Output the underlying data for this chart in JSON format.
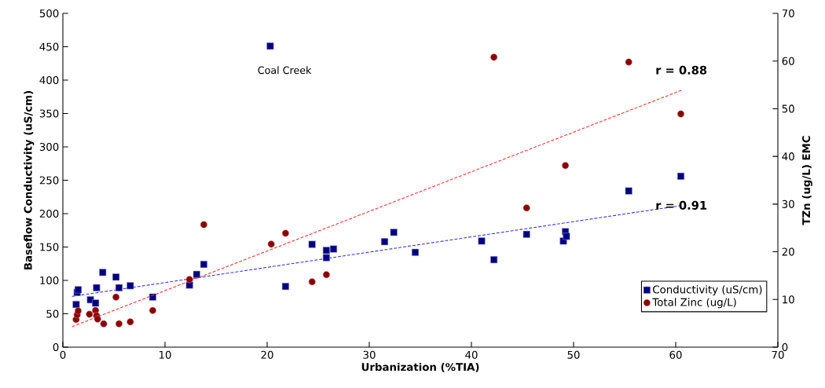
{
  "chart_data": {
    "type": "scatter",
    "xlabel": "Urbanization (%TIA)",
    "ylabel": "Baseflow Conductivity (uS/cm)",
    "y2label": "TZn (ug/L) EMC",
    "xlim": [
      0,
      70
    ],
    "xticks": [
      0,
      10,
      20,
      30,
      40,
      50,
      60,
      70
    ],
    "ylim": [
      0,
      500
    ],
    "yticks": [
      0,
      50,
      100,
      150,
      200,
      250,
      300,
      350,
      400,
      450,
      500
    ],
    "y2lim": [
      0,
      70
    ],
    "y2ticks": [
      0,
      10,
      20,
      30,
      40,
      50,
      60,
      70
    ],
    "legend": "bottom right",
    "grid": false,
    "series": [
      {
        "name": "Conductivity (uS/cm)",
        "color": "#000080",
        "marker": "square",
        "x": [
          1.3,
          1.4,
          1.5,
          2.7,
          3.2,
          3.3,
          3.9,
          5.2,
          5.5,
          6.6,
          8.8,
          12.4,
          13.1,
          13.8,
          20.3,
          21.8,
          24.4,
          25.8,
          26.5,
          25.8,
          31.5,
          32.4,
          34.5,
          41,
          42.2,
          45.4,
          49,
          49.2,
          49.3,
          55.4,
          60.5
        ],
        "values": [
          64,
          82,
          86,
          71,
          66,
          89,
          112,
          105,
          89,
          92,
          75,
          93,
          109,
          124,
          451,
          91,
          154,
          145,
          147,
          134,
          158,
          172,
          142,
          159,
          131,
          169,
          159,
          173,
          166,
          234,
          256
        ]
      },
      {
        "name": "Total Zinc (ug/L)",
        "color": "#8b0000",
        "marker": "circle",
        "axis": "y2",
        "x": [
          1.3,
          1.4,
          1.5,
          2.6,
          3.2,
          3.3,
          3.4,
          4.0,
          5.2,
          5.5,
          6.6,
          8.8,
          12.4,
          13.8,
          20.4,
          21.8,
          24.4,
          25.8,
          42.2,
          45.4,
          49.2,
          55.4,
          60.5
        ],
        "values": [
          5.8,
          6.8,
          7.6,
          6.9,
          7.7,
          6.6,
          5.9,
          4.9,
          10.5,
          4.9,
          5.3,
          7.7,
          14.2,
          25.7,
          21.6,
          23.9,
          13.7,
          15.2,
          60.8,
          29.2,
          38.1,
          59.8,
          48.9
        ]
      },
      {
        "type": "line",
        "color": "#3333ff",
        "marker": "none",
        "line_style": "dashed",
        "x": [
          0.9,
          60.5
        ],
        "values": [
          76,
          212
        ]
      },
      {
        "type": "line",
        "color": "#ff3333",
        "marker": "none",
        "line_style": "dashed",
        "axis": "y2",
        "x": [
          0.9,
          60.6
        ],
        "values": [
          4.3,
          53.9
        ]
      }
    ],
    "annotations": [
      "Coal Creek",
      "r = 0.88",
      "r = 0.91"
    ]
  }
}
